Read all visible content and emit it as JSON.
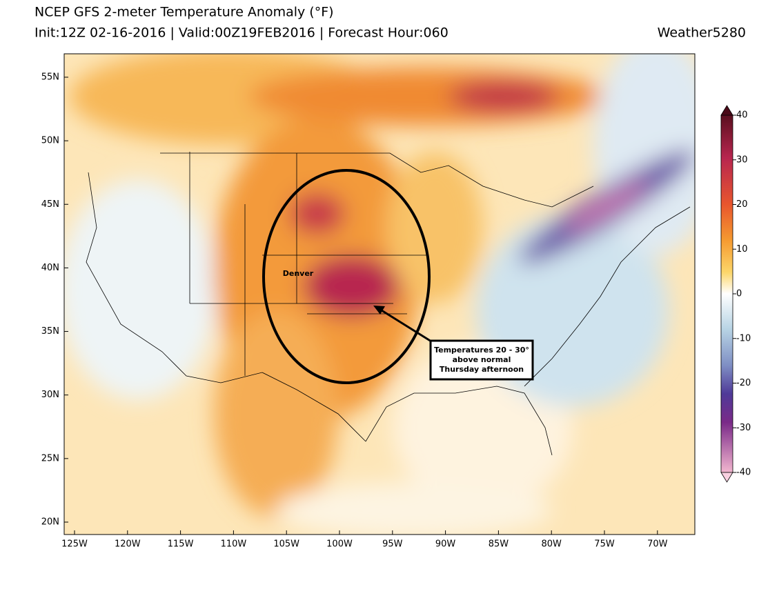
{
  "header": {
    "title": "NCEP GFS 2-meter Temperature Anomaly (°F)",
    "subtitle": "Init:12Z 02-16-2016 | Valid:00Z19FEB2016 | Forecast Hour:060",
    "credit": "Weather5280"
  },
  "map": {
    "lon_ticks": [
      {
        "value": -125,
        "label": "125W"
      },
      {
        "value": -120,
        "label": "120W"
      },
      {
        "value": -115,
        "label": "115W"
      },
      {
        "value": -110,
        "label": "110W"
      },
      {
        "value": -105,
        "label": "105W"
      },
      {
        "value": -100,
        "label": "100W"
      },
      {
        "value": -95,
        "label": "95W"
      },
      {
        "value": -90,
        "label": "90W"
      },
      {
        "value": -85,
        "label": "85W"
      },
      {
        "value": -80,
        "label": "80W"
      },
      {
        "value": -75,
        "label": "75W"
      },
      {
        "value": -70,
        "label": "70W"
      }
    ],
    "lat_ticks": [
      {
        "value": 20,
        "label": "20N"
      },
      {
        "value": 25,
        "label": "25N"
      },
      {
        "value": 30,
        "label": "30N"
      },
      {
        "value": 35,
        "label": "35N"
      },
      {
        "value": 40,
        "label": "40N"
      },
      {
        "value": 45,
        "label": "45N"
      },
      {
        "value": 50,
        "label": "50N"
      },
      {
        "value": 55,
        "label": "55N"
      }
    ],
    "city_label": "Denver",
    "annotation": [
      "Temperatures 20 - 30°",
      "above normal",
      "Thursday afternoon"
    ]
  },
  "colorbar": {
    "ticks": [
      40,
      30,
      20,
      10,
      0,
      -10,
      -20,
      -30,
      -40
    ],
    "lim": [
      -40,
      40
    ]
  }
}
